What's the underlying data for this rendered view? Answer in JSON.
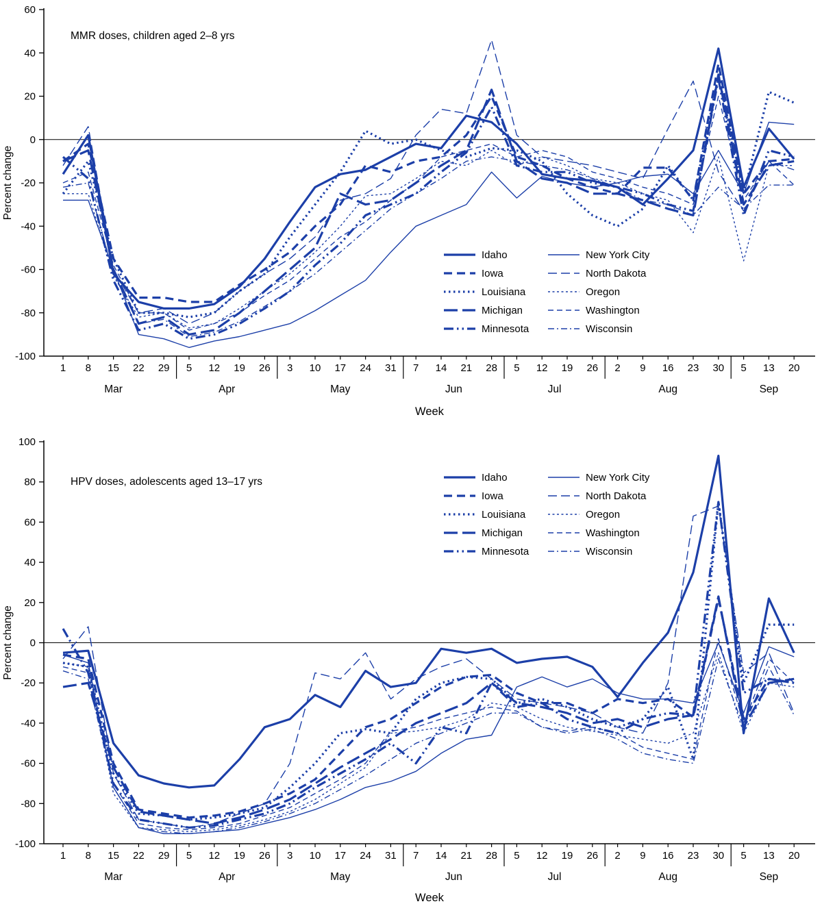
{
  "styles": {
    "line_color": "#1c3fa8",
    "axis_color": "#000000",
    "background": "#ffffff"
  },
  "chart_data": [
    {
      "type": "line",
      "title": "MMR doses, children aged 2–8 yrs",
      "xlabel": "Week",
      "ylabel": "Percent change",
      "ylim": [
        -100,
        60
      ],
      "ytick_interval": 20,
      "grid": false,
      "legend_position": "inside-lower-right",
      "week_labels": [
        "1",
        "8",
        "15",
        "22",
        "29",
        "5",
        "12",
        "19",
        "26",
        "3",
        "10",
        "17",
        "24",
        "31",
        "7",
        "14",
        "21",
        "28",
        "5",
        "12",
        "19",
        "26",
        "2",
        "9",
        "16",
        "23",
        "30",
        "5",
        "13",
        "20"
      ],
      "months": [
        {
          "label": "Mar",
          "weeks": 5
        },
        {
          "label": "Apr",
          "weeks": 4
        },
        {
          "label": "May",
          "weeks": 5
        },
        {
          "label": "Jun",
          "weeks": 4
        },
        {
          "label": "Jul",
          "weeks": 4
        },
        {
          "label": "Aug",
          "weeks": 5
        },
        {
          "label": "Sep",
          "weeks": 3
        }
      ],
      "series": [
        {
          "name": "Idaho",
          "style": "thick-solid",
          "values": [
            -16,
            2,
            -62,
            -75,
            -78,
            -78,
            -76,
            -68,
            -55,
            -38,
            -22,
            -16,
            -14,
            -8,
            -2,
            -4,
            11,
            8,
            -2,
            -16,
            -18,
            -19,
            -22,
            -30,
            -18,
            -5,
            42,
            -22,
            5,
            -9
          ]
        },
        {
          "name": "Iowa",
          "style": "thick-dash",
          "values": [
            -10,
            -2,
            -55,
            -73,
            -73,
            -75,
            -75,
            -67,
            -60,
            -52,
            -40,
            -30,
            -12,
            -15,
            -10,
            -8,
            2,
            20,
            -8,
            -12,
            -18,
            -22,
            -25,
            -13,
            -13,
            -28,
            35,
            -25,
            -10,
            -9
          ]
        },
        {
          "name": "Louisiana",
          "style": "thick-dot",
          "values": [
            -25,
            -10,
            -55,
            -80,
            -80,
            -82,
            -80,
            -70,
            -62,
            -45,
            -30,
            -15,
            4,
            -2,
            0,
            -5,
            -8,
            -4,
            -5,
            -10,
            -25,
            -35,
            -40,
            -32,
            -12,
            -28,
            30,
            -25,
            22,
            17
          ]
        },
        {
          "name": "Michigan",
          "style": "thick-longdash",
          "values": [
            -10,
            -5,
            -60,
            -85,
            -82,
            -90,
            -88,
            -80,
            -70,
            -60,
            -50,
            -25,
            -30,
            -28,
            -20,
            -12,
            -5,
            23,
            -10,
            -18,
            -20,
            -25,
            -25,
            -28,
            -32,
            -35,
            30,
            -30,
            -12,
            -10
          ]
        },
        {
          "name": "Minnesota",
          "style": "thick-dashdotdot",
          "values": [
            -8,
            -18,
            -65,
            -88,
            -85,
            -92,
            -90,
            -85,
            -78,
            -70,
            -58,
            -48,
            -35,
            -30,
            -25,
            -15,
            -6,
            15,
            -12,
            -15,
            -15,
            -20,
            -22,
            -25,
            -30,
            -33,
            28,
            -35,
            -5,
            -8
          ]
        },
        {
          "name": "New York City",
          "style": "thin-solid",
          "values": [
            -28,
            -28,
            -60,
            -90,
            -92,
            -96,
            -93,
            -91,
            -88,
            -85,
            -79,
            -72,
            -65,
            -52,
            -40,
            -35,
            -30,
            -15,
            -27,
            -17,
            -20,
            -22,
            -20,
            -17,
            -16,
            -25,
            -5,
            -25,
            8,
            7
          ]
        },
        {
          "name": "North Dakota",
          "style": "thin-longdash",
          "values": [
            -12,
            6,
            -60,
            -80,
            -78,
            -85,
            -80,
            -70,
            -62,
            -55,
            -45,
            -28,
            -25,
            -18,
            2,
            14,
            12,
            46,
            2,
            -8,
            -10,
            -12,
            -15,
            -18,
            5,
            27,
            -15,
            -33,
            -10,
            -14
          ]
        },
        {
          "name": "Oregon",
          "style": "thin-dot",
          "values": [
            -25,
            -25,
            -63,
            -82,
            -80,
            -87,
            -85,
            -78,
            -70,
            -62,
            -52,
            -40,
            -26,
            -25,
            -18,
            -10,
            -12,
            -5,
            -12,
            -8,
            -12,
            -18,
            -20,
            -25,
            -28,
            -43,
            -8,
            -56,
            -12,
            -12
          ]
        },
        {
          "name": "Washington",
          "style": "thin-dash",
          "values": [
            -20,
            -15,
            -58,
            -80,
            -80,
            -88,
            -85,
            -80,
            -72,
            -65,
            -55,
            -45,
            -38,
            -28,
            -20,
            -8,
            -5,
            -2,
            -8,
            -5,
            -8,
            -15,
            -18,
            -22,
            -25,
            -30,
            20,
            -28,
            -10,
            -21
          ]
        },
        {
          "name": "Wisconsin",
          "style": "thin-dashdot",
          "values": [
            -22,
            -20,
            -62,
            -85,
            -83,
            -91,
            -89,
            -84,
            -77,
            -70,
            -62,
            -52,
            -42,
            -32,
            -25,
            -18,
            -10,
            -8,
            -10,
            -12,
            -14,
            -18,
            -22,
            -28,
            -30,
            -35,
            -22,
            -32,
            -21,
            -21
          ]
        }
      ]
    },
    {
      "type": "line",
      "title": "HPV doses, adolescents aged 13–17 yrs",
      "xlabel": "Week",
      "ylabel": "Percent change",
      "ylim": [
        -100,
        100
      ],
      "ytick_interval": 20,
      "grid": false,
      "legend_position": "inside-upper-center",
      "week_labels": [
        "1",
        "8",
        "15",
        "22",
        "29",
        "5",
        "12",
        "19",
        "26",
        "3",
        "10",
        "17",
        "24",
        "31",
        "7",
        "14",
        "21",
        "28",
        "5",
        "12",
        "19",
        "26",
        "2",
        "9",
        "16",
        "23",
        "30",
        "5",
        "13",
        "20"
      ],
      "months": [
        {
          "label": "Mar",
          "weeks": 5
        },
        {
          "label": "Apr",
          "weeks": 4
        },
        {
          "label": "May",
          "weeks": 5
        },
        {
          "label": "Jun",
          "weeks": 4
        },
        {
          "label": "Jul",
          "weeks": 4
        },
        {
          "label": "Aug",
          "weeks": 5
        },
        {
          "label": "Sep",
          "weeks": 3
        }
      ],
      "series": [
        {
          "name": "Idaho",
          "style": "thick-solid",
          "values": [
            -5,
            -4,
            -50,
            -66,
            -70,
            -72,
            -71,
            -58,
            -42,
            -38,
            -26,
            -32,
            -14,
            -22,
            -20,
            -3,
            -5,
            -3,
            -10,
            -8,
            -7,
            -12,
            -27,
            -10,
            5,
            35,
            93,
            -45,
            22,
            -5
          ]
        },
        {
          "name": "Iowa",
          "style": "thick-dash",
          "values": [
            -6,
            -8,
            -60,
            -83,
            -85,
            -87,
            -86,
            -84,
            -80,
            -75,
            -68,
            -55,
            -42,
            -38,
            -30,
            -22,
            -17,
            -16,
            -25,
            -30,
            -30,
            -35,
            -28,
            -30,
            -28,
            -37,
            22,
            -38,
            -18,
            -20
          ]
        },
        {
          "name": "Louisiana",
          "style": "thick-dot",
          "values": [
            -10,
            -12,
            -65,
            -85,
            -86,
            -88,
            -87,
            -85,
            -82,
            -72,
            -60,
            -45,
            -43,
            -45,
            -28,
            -20,
            -17,
            -18,
            -30,
            -28,
            -32,
            -38,
            -42,
            -38,
            -22,
            -58,
            70,
            -20,
            9,
            9
          ]
        },
        {
          "name": "Michigan",
          "style": "thick-longdash",
          "values": [
            -22,
            -20,
            -62,
            -84,
            -86,
            -88,
            -90,
            -87,
            -83,
            -78,
            -70,
            -62,
            -55,
            -48,
            -40,
            -35,
            -30,
            -20,
            -30,
            -32,
            -35,
            -40,
            -38,
            -42,
            -38,
            -36,
            23,
            -42,
            -20,
            -18
          ]
        },
        {
          "name": "Minnesota",
          "style": "thick-dashdotdot",
          "values": [
            7,
            -15,
            -70,
            -88,
            -90,
            -92,
            -91,
            -88,
            -85,
            -80,
            -72,
            -65,
            -58,
            -50,
            -60,
            -42,
            -45,
            -20,
            -32,
            -30,
            -38,
            -42,
            -45,
            -38,
            -35,
            -36,
            70,
            -25,
            -18,
            -20
          ]
        },
        {
          "name": "New York City",
          "style": "thin-solid",
          "values": [
            -6,
            -10,
            -72,
            -92,
            -95,
            -95,
            -94,
            -93,
            -90,
            -87,
            -83,
            -78,
            -72,
            -69,
            -64,
            -55,
            -48,
            -46,
            -22,
            -17,
            -22,
            -18,
            -25,
            -28,
            -28,
            -30,
            0,
            -35,
            -2,
            -7
          ]
        },
        {
          "name": "North Dakota",
          "style": "thin-longdash",
          "values": [
            -8,
            8,
            -65,
            -88,
            -90,
            -92,
            -90,
            -85,
            -80,
            -60,
            -15,
            -18,
            -5,
            -28,
            -18,
            -12,
            -8,
            -18,
            -28,
            -30,
            -32,
            -35,
            -42,
            -45,
            -20,
            63,
            68,
            -15,
            -5,
            -35
          ]
        },
        {
          "name": "Oregon",
          "style": "thin-dot",
          "values": [
            -10,
            -12,
            -75,
            -92,
            -93,
            -94,
            -93,
            -91,
            -88,
            -84,
            -78,
            -70,
            -62,
            -45,
            -44,
            -42,
            -38,
            -30,
            -32,
            -38,
            -42,
            -44,
            -46,
            -48,
            -50,
            -45,
            -5,
            -45,
            -20,
            -22
          ]
        },
        {
          "name": "Washington",
          "style": "thin-dash",
          "values": [
            -12,
            -15,
            -70,
            -90,
            -92,
            -93,
            -92,
            -90,
            -86,
            -82,
            -75,
            -68,
            -60,
            -44,
            -42,
            -38,
            -35,
            -32,
            -34,
            -42,
            -44,
            -42,
            -45,
            -52,
            -55,
            -58,
            2,
            -40,
            -8,
            -20
          ]
        },
        {
          "name": "Wisconsin",
          "style": "thin-dashdot",
          "values": [
            -14,
            -18,
            -72,
            -92,
            -94,
            -95,
            -94,
            -92,
            -89,
            -85,
            -80,
            -73,
            -66,
            -58,
            -50,
            -45,
            -40,
            -35,
            -35,
            -42,
            -45,
            -43,
            -48,
            -55,
            -58,
            -60,
            -8,
            -42,
            -12,
            -36
          ]
        }
      ]
    }
  ]
}
